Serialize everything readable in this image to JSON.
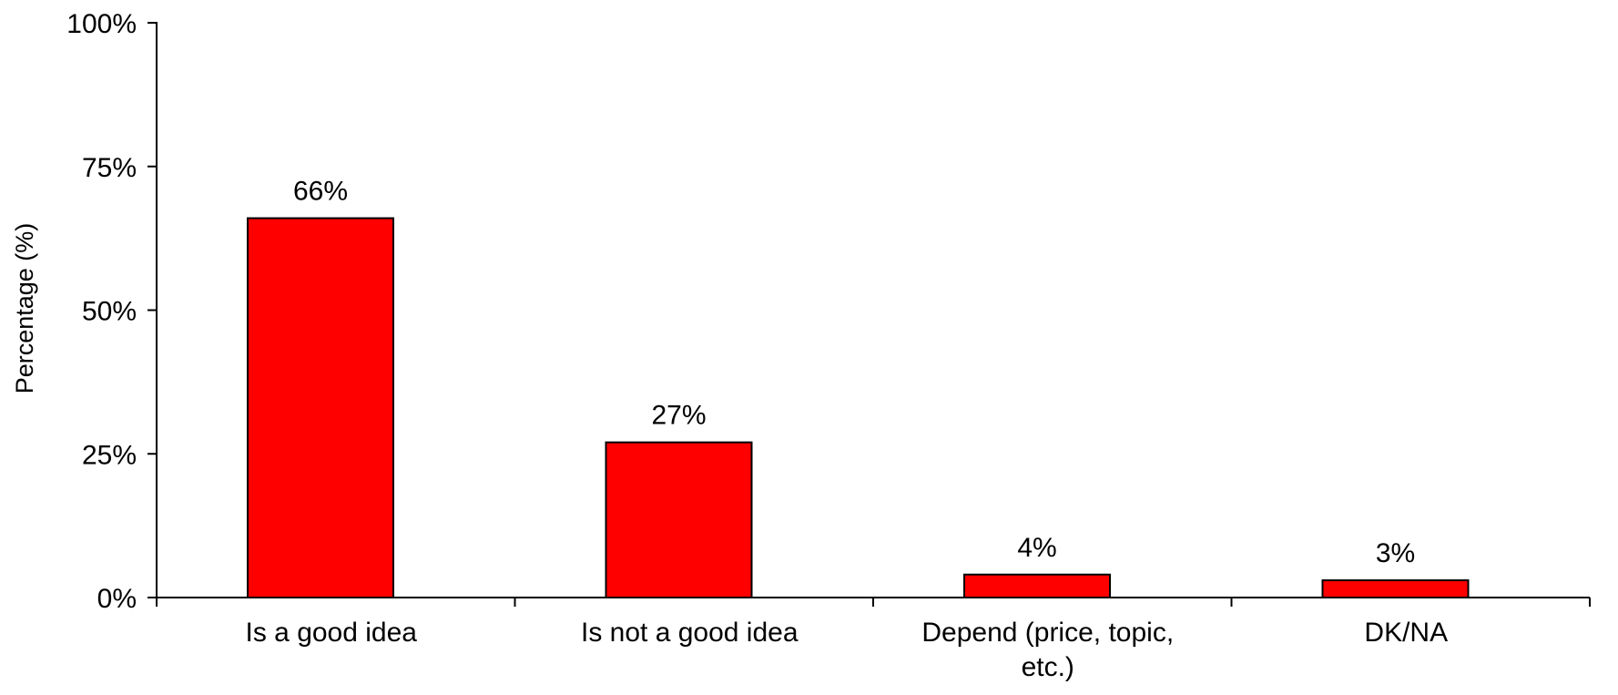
{
  "chart_data": {
    "type": "bar",
    "title": "",
    "xlabel": "",
    "ylabel": "Percentage (%)",
    "ylim": [
      0,
      100
    ],
    "y_ticks": [
      0,
      25,
      50,
      75,
      100
    ],
    "y_tick_labels": [
      "0%",
      "25%",
      "50%",
      "75%",
      "100%"
    ],
    "categories": [
      "Is a good idea",
      "Is not a good idea",
      "Depend (price, topic, etc.)",
      "DK/NA"
    ],
    "category_label_lines": [
      [
        "Is a good idea"
      ],
      [
        "Is not a good idea"
      ],
      [
        "Depend (price, topic,",
        "etc.)"
      ],
      [
        "DK/NA"
      ]
    ],
    "values": [
      66,
      27,
      4,
      3
    ],
    "data_labels": [
      "66%",
      "27%",
      "4%",
      "3%"
    ],
    "bar_color": "#ff0000",
    "bar_edge_color": "#000000",
    "grid": false,
    "legend": "none"
  }
}
